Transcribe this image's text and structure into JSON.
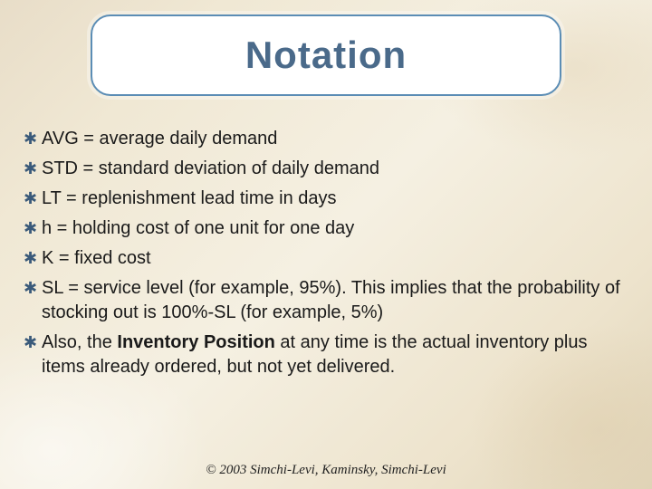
{
  "title": "Notation",
  "title_box": {
    "border_color": "#5b8db5",
    "background": "#ffffff",
    "text_color": "#4a6a8a",
    "font_size": 42,
    "border_radius": 22
  },
  "bullets": {
    "glyph": "✱",
    "color": "#3a5a7a",
    "items": [
      {
        "text": "AVG = average daily demand"
      },
      {
        "text": "STD = standard deviation of daily demand"
      },
      {
        "text": "LT = replenishment lead time in days"
      },
      {
        "text": "h = holding cost of one unit for one day"
      },
      {
        "text": "K = fixed cost"
      },
      {
        "text": "SL = service level (for example, 95%). This implies that the probability of stocking out is 100%-SL (for example, 5%)"
      },
      {
        "html": "Also, the <b>Inventory Position</b> at any time is the actual inventory plus items already ordered, but not yet delivered."
      }
    ]
  },
  "body_text": {
    "font_size": 20,
    "color": "#1a1a1a"
  },
  "copyright": "© 2003 Simchi-Levi, Kaminsky, Simchi-Levi",
  "background": {
    "base_colors": [
      "#e8ddc8",
      "#f0e8d4",
      "#f5f0e2",
      "#ede3cc",
      "#e0d4b8"
    ]
  }
}
